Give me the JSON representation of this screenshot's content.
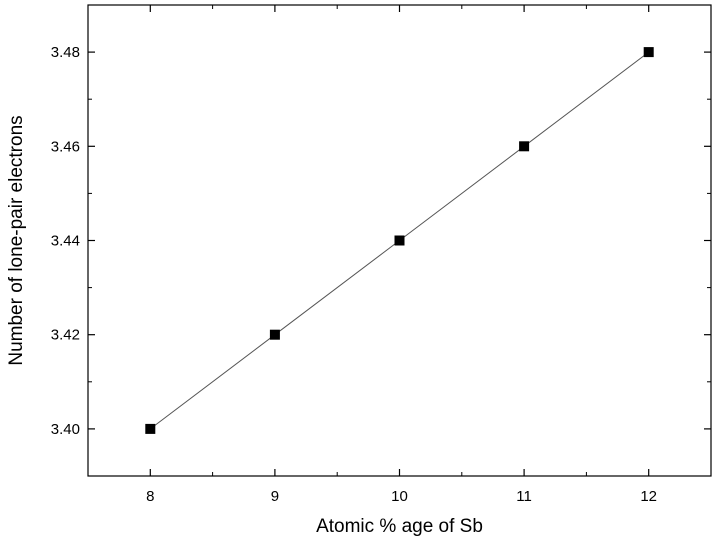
{
  "chart_data": {
    "type": "line",
    "title": "",
    "xlabel": "Atomic % age of Sb",
    "ylabel": "Number of lone-pair electrons",
    "xlim": [
      7.5,
      12.5
    ],
    "ylim": [
      3.39,
      3.49
    ],
    "x_ticks": [
      8,
      9,
      10,
      11,
      12
    ],
    "x_tick_labels": [
      "8",
      "9",
      "10",
      "11",
      "12"
    ],
    "y_ticks": [
      3.4,
      3.42,
      3.44,
      3.46,
      3.48
    ],
    "y_tick_labels": [
      "3.40",
      "3.42",
      "3.44",
      "3.46",
      "3.48"
    ],
    "grid": false,
    "legend": "none",
    "marker": "square",
    "color": "#000000",
    "series": [
      {
        "x": [
          8,
          9,
          10,
          11,
          12
        ],
        "values": [
          3.4,
          3.42,
          3.44,
          3.46,
          3.48
        ]
      }
    ]
  }
}
